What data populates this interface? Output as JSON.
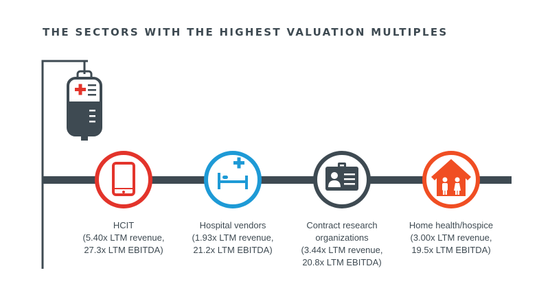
{
  "title": "THE SECTORS WITH THE HIGHEST VALUATION MULTIPLES",
  "colors": {
    "line": "#3e4a52",
    "red": "#e3342b",
    "blue": "#1e9ad6",
    "dark": "#3e4a52",
    "orange": "#f04e23"
  },
  "sectors": [
    {
      "icon": "tablet-icon",
      "color": "#e3342b",
      "lines": [
        "HCIT",
        "(5.40x LTM revenue,",
        "27.3x LTM EBITDA)"
      ]
    },
    {
      "icon": "hospital-bed-icon",
      "color": "#1e9ad6",
      "lines": [
        "Hospital vendors",
        "(1.93x LTM revenue,",
        "21.2x LTM EBITDA)"
      ]
    },
    {
      "icon": "id-badge-icon",
      "color": "#3e4a52",
      "lines": [
        "Contract research",
        "organizations",
        "(3.44x LTM revenue,",
        "20.8x LTM EBITDA)"
      ]
    },
    {
      "icon": "home-family-icon",
      "color": "#f04e23",
      "lines": [
        "Home health/hospice",
        "(3.00x LTM revenue,",
        "19.5x LTM EBITDA)"
      ]
    }
  ]
}
